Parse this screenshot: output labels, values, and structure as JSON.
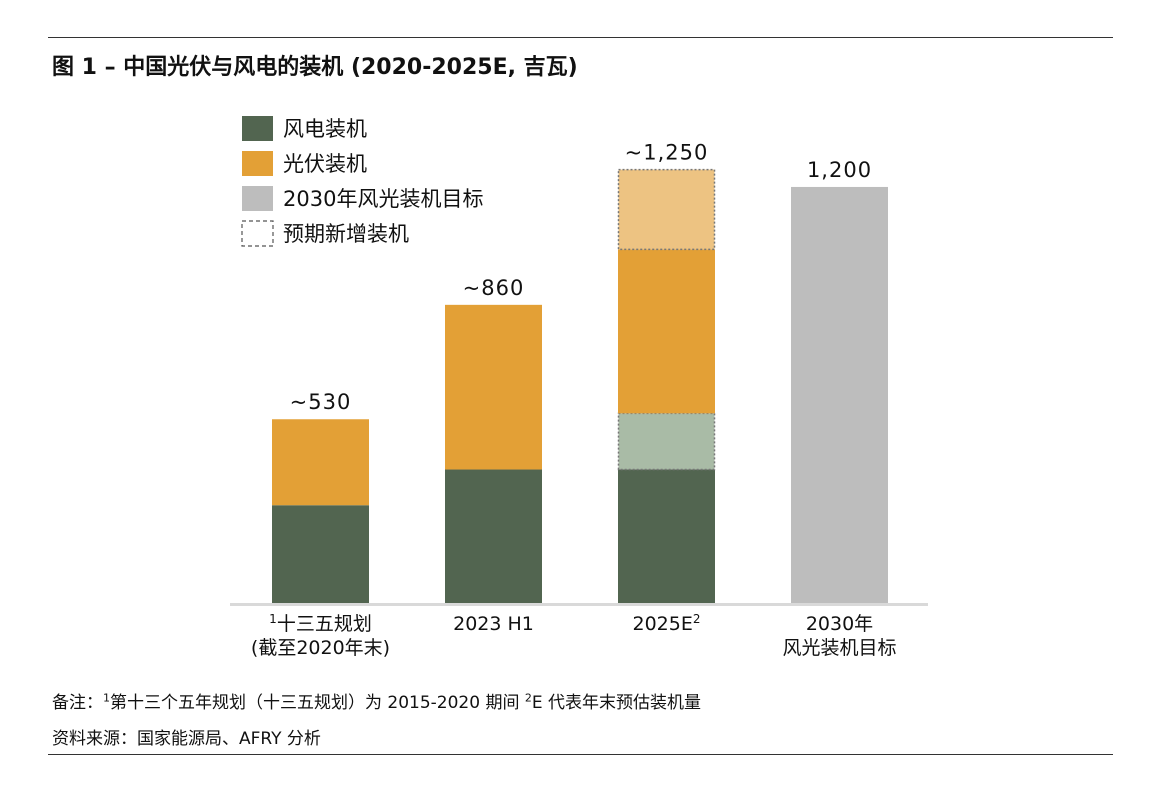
{
  "title": "图 1 – 中国光伏与风电的装机 (2020-2025E, 吉瓦)",
  "notes": {
    "line1_prefix": "备注：",
    "line1_sup1": "1",
    "line1_text1": "第十三个五年规划（十三五规划）为 2015-2020 期间 ",
    "line1_sup2": "2",
    "line1_text2": "E 代表年末预估装机量",
    "line2": "资料来源：国家能源局、AFRY 分析"
  },
  "colors": {
    "wind": "#526550",
    "solar": "#E3A036",
    "target": "#BDBDBD",
    "wind_expected": "#A9BBA6",
    "solar_expected": "#EDC382",
    "expected_border": "#777777",
    "axis": "#D9D9D9"
  },
  "chart_data": {
    "type": "bar",
    "stacked": true,
    "unit": "吉瓦",
    "categories": [
      {
        "lines": [
          "十三五规划",
          "(截至2020年末)"
        ],
        "sup_before": "1"
      },
      {
        "lines": [
          "2023 H1"
        ]
      },
      {
        "lines": [
          "2025E"
        ],
        "sup_after": "2"
      },
      {
        "lines": [
          "2030年",
          "风光装机目标"
        ]
      }
    ],
    "series": [
      {
        "name": "风电装机",
        "key": "wind",
        "values": [
          282,
          385,
          385,
          null
        ]
      },
      {
        "name": "光伏装机",
        "key": "solar",
        "values": [
          248,
          475,
          473,
          null
        ]
      },
      {
        "name": "2030年风光装机目标",
        "key": "target",
        "values": [
          null,
          null,
          null,
          1200
        ]
      },
      {
        "name": "预期新增装机",
        "key": "expected",
        "segments": {
          "wind": [
            0,
            0,
            162,
            0
          ],
          "solar": [
            0,
            0,
            230,
            0
          ]
        }
      }
    ],
    "totals": [
      "~530",
      "~860",
      "~1,250",
      "1,200"
    ],
    "ylim": [
      0,
      1300
    ],
    "legend_position": "top-left"
  }
}
